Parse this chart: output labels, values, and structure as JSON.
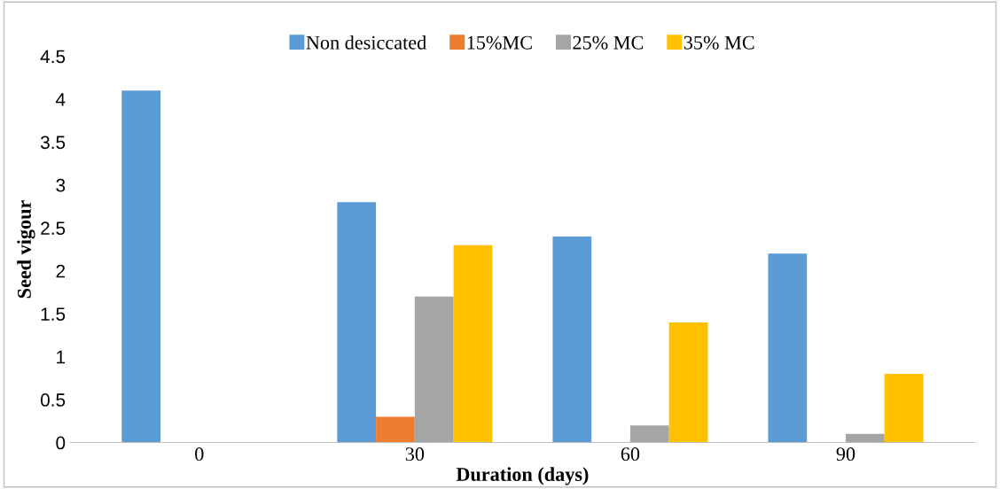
{
  "chart_data": {
    "type": "bar",
    "xlabel": "Duration (days)",
    "ylabel": "Seed vigour",
    "categories": [
      "0",
      "30",
      "60",
      "90"
    ],
    "series": [
      {
        "name": "Non desiccated",
        "color": "#5b9bd5",
        "values": [
          4.1,
          2.8,
          2.4,
          2.2
        ]
      },
      {
        "name": "15%MC",
        "color": "#ed7d31",
        "values": [
          0,
          0.3,
          0,
          0
        ]
      },
      {
        "name": "25% MC",
        "color": "#a5a5a5",
        "values": [
          0,
          1.7,
          0.2,
          0.1
        ]
      },
      {
        "name": "35% MC",
        "color": "#ffc000",
        "values": [
          0,
          2.3,
          1.4,
          0.8
        ]
      }
    ],
    "ylim": [
      0,
      4.5
    ],
    "yticks": [
      0,
      0.5,
      1,
      1.5,
      2,
      2.5,
      3,
      3.5,
      4,
      4.5
    ],
    "grid": false,
    "legend": "top"
  }
}
